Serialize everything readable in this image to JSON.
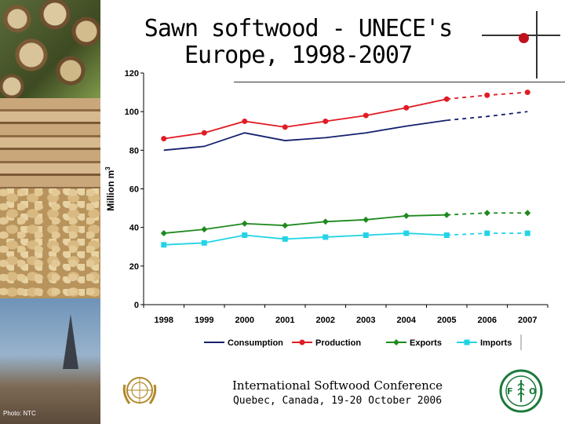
{
  "title": {
    "line1": "Sawn softwood - UNECE's",
    "line2": "Europe, 1998-2007"
  },
  "photo_credit": "Photo: NTC",
  "footer": {
    "title": "International Softwood Conference",
    "subtitle": "Quebec, Canada, 19-20 October 2006"
  },
  "colors": {
    "consumption": "#14206e",
    "production": "#e01c24",
    "exports": "#1e8a1e",
    "imports": "#22d4e6",
    "accent_dot": "#c0101c"
  },
  "chart_data": {
    "type": "line",
    "ylabel": "Million m",
    "ylabel_superscript": "3",
    "ylim": [
      0,
      120
    ],
    "yticks": [
      "0",
      "20",
      "40",
      "60",
      "80",
      "100",
      "120"
    ],
    "categories": [
      "1998",
      "1999",
      "2000",
      "2001",
      "2002",
      "2003",
      "2004",
      "2005",
      "2006",
      "2007"
    ],
    "actual_through": "2005",
    "forecast_from": "2005",
    "legend_position": "bottom",
    "grid": false,
    "series": [
      {
        "name": "Consumption",
        "marker": "none",
        "values": [
          80,
          82,
          89,
          85,
          86.5,
          89,
          92.5,
          95.5,
          97.5,
          100
        ]
      },
      {
        "name": "Production",
        "marker": "circle",
        "values": [
          86,
          89,
          95,
          92,
          95,
          98,
          102,
          106.5,
          108.5,
          110
        ]
      },
      {
        "name": "Exports",
        "marker": "diamond",
        "values": [
          37,
          39,
          42,
          41,
          43,
          44,
          46,
          46.5,
          47.5,
          47.5
        ]
      },
      {
        "name": "Imports",
        "marker": "square",
        "values": [
          31,
          32,
          36,
          34,
          35,
          36,
          37,
          36,
          37,
          37
        ]
      }
    ]
  },
  "icons": {
    "un_emblem": "un-emblem-icon",
    "fao_logo": "fao-logo-icon"
  }
}
